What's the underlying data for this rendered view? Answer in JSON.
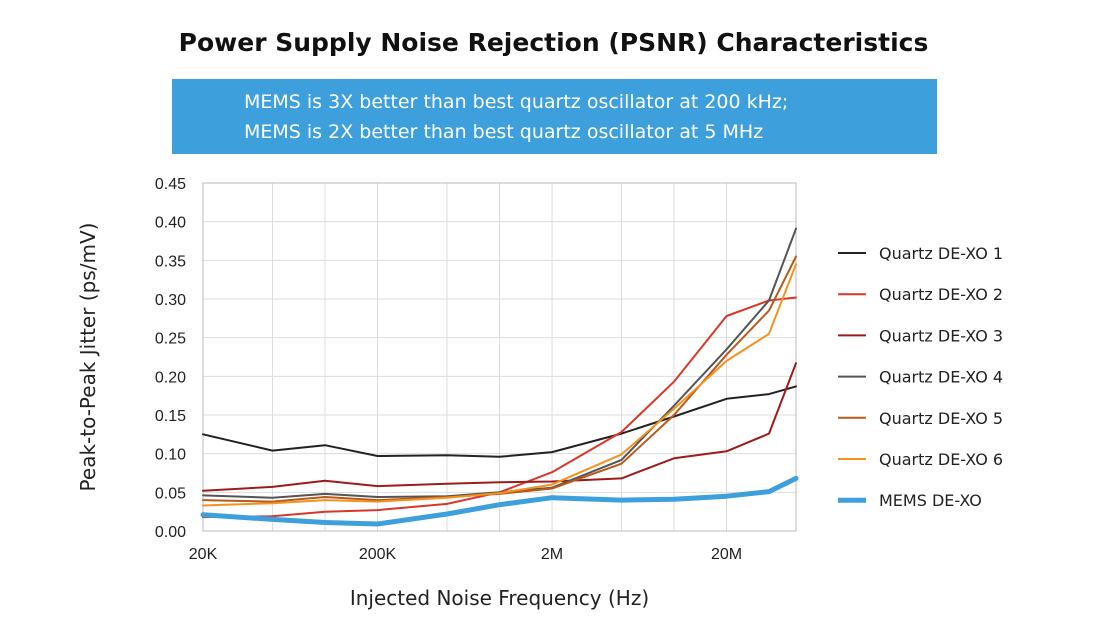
{
  "header": {
    "title": "Power Supply Noise Rejection (PSNR) Characteristics",
    "banner_line1": "MEMS is 3X better than best quartz oscillator at 200 kHz;",
    "banner_line2": "MEMS is 2X better than best quartz oscillator at 5 MHz"
  },
  "colors": {
    "banner": "#3d9fdc",
    "grid": "#dddddd",
    "frame": "#bbbbbb"
  },
  "chart_data": {
    "type": "line",
    "xscale": "log",
    "title": "Power Supply Noise Rejection (PSNR) Characteristics",
    "xlabel": "Injected Noise Frequency (Hz)",
    "ylabel": "Peak-to-Peak Jitter (ps/mV)",
    "xlim": [
      20000,
      50000000
    ],
    "ylim": [
      0,
      0.45
    ],
    "xticks": [
      {
        "value": 20000,
        "label": "20K"
      },
      {
        "value": 200000,
        "label": "200K"
      },
      {
        "value": 2000000,
        "label": "2M"
      },
      {
        "value": 20000000,
        "label": "20M"
      }
    ],
    "yticks": [
      {
        "value": 0.0,
        "label": "0.00"
      },
      {
        "value": 0.05,
        "label": "0.05"
      },
      {
        "value": 0.1,
        "label": "0.10"
      },
      {
        "value": 0.15,
        "label": "0.15"
      },
      {
        "value": 0.2,
        "label": "0.20"
      },
      {
        "value": 0.25,
        "label": "0.25"
      },
      {
        "value": 0.3,
        "label": "0.30"
      },
      {
        "value": 0.35,
        "label": "0.35"
      },
      {
        "value": 0.4,
        "label": "0.40"
      },
      {
        "value": 0.45,
        "label": "0.45"
      }
    ],
    "grid": true,
    "legend_position": "right",
    "x": [
      20000,
      50000,
      100000,
      200000,
      500000,
      1000000,
      2000000,
      5000000,
      10000000,
      20000000,
      35000000,
      50000000
    ],
    "series": [
      {
        "name": "Quartz DE-XO 1",
        "color": "#222222",
        "width": 2,
        "values": [
          0.125,
          0.104,
          0.111,
          0.097,
          0.098,
          0.096,
          0.102,
          0.126,
          0.148,
          0.171,
          0.177,
          0.187
        ]
      },
      {
        "name": "Quartz DE-XO 2",
        "color": "#d6382a",
        "width": 2,
        "values": [
          0.018,
          0.019,
          0.025,
          0.027,
          0.035,
          0.05,
          0.076,
          0.128,
          0.193,
          0.278,
          0.298,
          0.302
        ]
      },
      {
        "name": "Quartz DE-XO 3",
        "color": "#9e1b1b",
        "width": 2,
        "values": [
          0.052,
          0.057,
          0.065,
          0.058,
          0.061,
          0.063,
          0.064,
          0.068,
          0.094,
          0.103,
          0.126,
          0.217
        ]
      },
      {
        "name": "Quartz DE-XO 4",
        "color": "#555555",
        "width": 2,
        "values": [
          0.046,
          0.043,
          0.048,
          0.044,
          0.045,
          0.05,
          0.056,
          0.092,
          0.162,
          0.235,
          0.298,
          0.391
        ]
      },
      {
        "name": "Quartz DE-XO 5",
        "color": "#b85a1e",
        "width": 2,
        "values": [
          0.04,
          0.038,
          0.044,
          0.04,
          0.044,
          0.048,
          0.055,
          0.087,
          0.15,
          0.228,
          0.285,
          0.355
        ]
      },
      {
        "name": "Quartz DE-XO 6",
        "color": "#f5921e",
        "width": 2,
        "values": [
          0.033,
          0.036,
          0.04,
          0.038,
          0.043,
          0.049,
          0.06,
          0.099,
          0.158,
          0.22,
          0.255,
          0.345
        ]
      },
      {
        "name": "MEMS DE-XO",
        "color": "#3d9fdc",
        "width": 5,
        "values": [
          0.021,
          0.015,
          0.011,
          0.009,
          0.022,
          0.034,
          0.043,
          0.04,
          0.041,
          0.045,
          0.051,
          0.068
        ]
      }
    ]
  }
}
